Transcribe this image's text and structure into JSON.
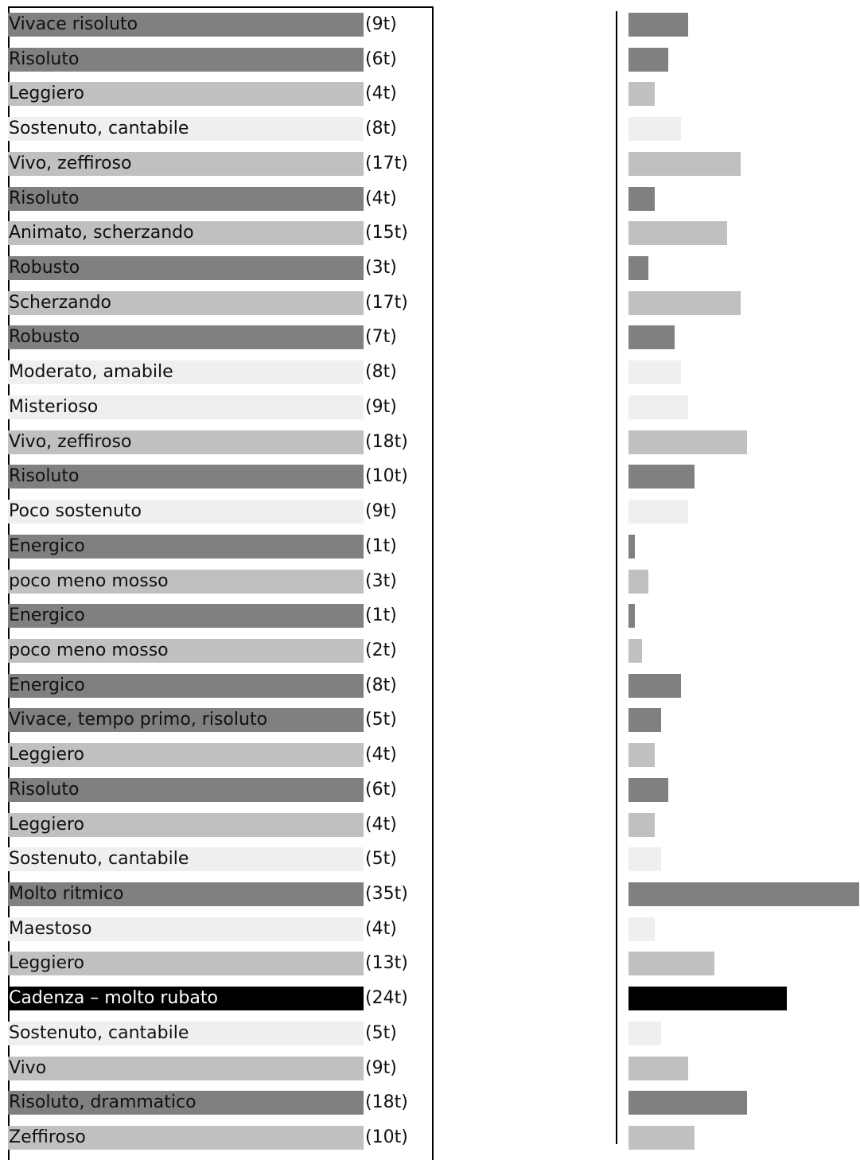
{
  "colors": {
    "dark": "#808080",
    "medium": "#c0c0c0",
    "light": "#efefef",
    "black": "#000000"
  },
  "chart_data": {
    "type": "bar",
    "orientation": "horizontal",
    "unit": "t",
    "sections": [
      {
        "label": "Vivace risoluto",
        "count": "(9t)",
        "value": 9,
        "shade": "dark"
      },
      {
        "label": "Risoluto",
        "count": "(6t)",
        "value": 6,
        "shade": "dark"
      },
      {
        "label": "Leggiero",
        "count": "(4t)",
        "value": 4,
        "shade": "medium"
      },
      {
        "label": "Sostenuto, cantabile",
        "count": "(8t)",
        "value": 8,
        "shade": "light"
      },
      {
        "label": "Vivo, zeffiroso",
        "count": "(17t)",
        "value": 17,
        "shade": "medium"
      },
      {
        "label": "Risoluto",
        "count": "(4t)",
        "value": 4,
        "shade": "dark"
      },
      {
        "label": "Animato, scherzando",
        "count": "(15t)",
        "value": 15,
        "shade": "medium"
      },
      {
        "label": "Robusto",
        "count": "(3t)",
        "value": 3,
        "shade": "dark"
      },
      {
        "label": "Scherzando",
        "count": "(17t)",
        "value": 17,
        "shade": "medium"
      },
      {
        "label": "Robusto",
        "count": "(7t)",
        "value": 7,
        "shade": "dark"
      },
      {
        "label": "Moderato, amabile",
        "count": "(8t)",
        "value": 8,
        "shade": "light"
      },
      {
        "label": "Misterioso",
        "count": "(9t)",
        "value": 9,
        "shade": "light"
      },
      {
        "label": "Vivo, zeffiroso",
        "count": "(18t)",
        "value": 18,
        "shade": "medium"
      },
      {
        "label": "Risoluto",
        "count": "(10t)",
        "value": 10,
        "shade": "dark"
      },
      {
        "label": "Poco sostenuto",
        "count": "(9t)",
        "value": 9,
        "shade": "light"
      },
      {
        "label": "Energico",
        "count": "(1t)",
        "value": 1,
        "shade": "dark"
      },
      {
        "label": "poco meno mosso",
        "count": "(3t)",
        "value": 3,
        "shade": "medium"
      },
      {
        "label": "Energico",
        "count": "(1t)",
        "value": 1,
        "shade": "dark"
      },
      {
        "label": "poco meno mosso",
        "count": "(2t)",
        "value": 2,
        "shade": "medium"
      },
      {
        "label": "Energico",
        "count": "(8t)",
        "value": 8,
        "shade": "dark"
      },
      {
        "label": "Vivace, tempo primo, risoluto",
        "count": "(5t)",
        "value": 5,
        "shade": "dark"
      },
      {
        "label": "Leggiero",
        "count": "(4t)",
        "value": 4,
        "shade": "medium"
      },
      {
        "label": "Risoluto",
        "count": "(6t)",
        "value": 6,
        "shade": "dark"
      },
      {
        "label": "Leggiero",
        "count": "(4t)",
        "value": 4,
        "shade": "medium"
      },
      {
        "label": "Sostenuto, cantabile",
        "count": "(5t)",
        "value": 5,
        "shade": "light"
      },
      {
        "label": "Molto ritmico",
        "count": "(35t)",
        "value": 35,
        "shade": "dark"
      },
      {
        "label": "Maestoso",
        "count": "(4t)",
        "value": 4,
        "shade": "light"
      },
      {
        "label": "Leggiero",
        "count": "(13t)",
        "value": 13,
        "shade": "medium"
      },
      {
        "label": "Cadenza – molto rubato",
        "count": "(24t)",
        "value": 24,
        "shade": "black"
      },
      {
        "label": "Sostenuto, cantabile",
        "count": "(5t)",
        "value": 5,
        "shade": "light"
      },
      {
        "label": "Vivo",
        "count": "(9t)",
        "value": 9,
        "shade": "medium"
      },
      {
        "label": "Risoluto, drammatico",
        "count": "(18t)",
        "value": 18,
        "shade": "dark"
      },
      {
        "label": "Zeffiroso",
        "count": "(10t)",
        "value": 10,
        "shade": "medium"
      }
    ]
  }
}
